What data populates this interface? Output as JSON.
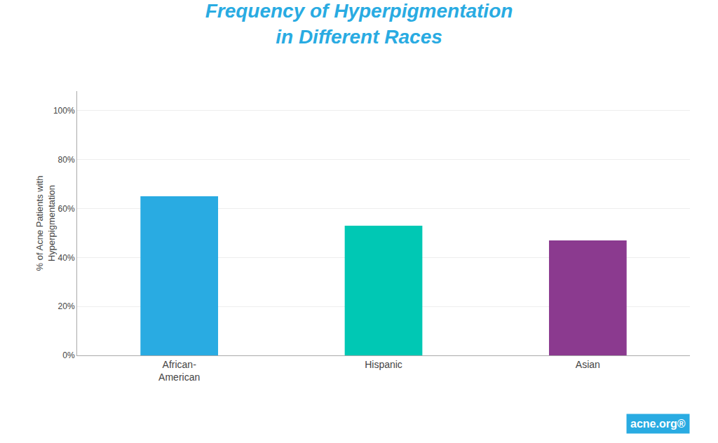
{
  "chart_data": {
    "type": "bar",
    "title": "Frequency of Hyperpigmentation\nin Different Races",
    "categories": [
      "African-\nAmerican",
      "Hispanic",
      "Asian"
    ],
    "values": [
      65,
      53,
      47
    ],
    "colors": [
      "#29ABE2",
      "#00C8B4",
      "#8B3A8F"
    ],
    "ylabel": "% of Acne Patients with\nHyperpigmentation",
    "ylim": [
      0,
      108
    ],
    "yticks": [
      {
        "value": 0,
        "label": "0%"
      },
      {
        "value": 20,
        "label": "20%"
      },
      {
        "value": 40,
        "label": "40%"
      },
      {
        "value": 60,
        "label": "60%"
      },
      {
        "value": 80,
        "label": "80%"
      },
      {
        "value": 100,
        "label": "100%"
      }
    ],
    "grid": true,
    "annotations": [
      "acne.org®"
    ]
  }
}
